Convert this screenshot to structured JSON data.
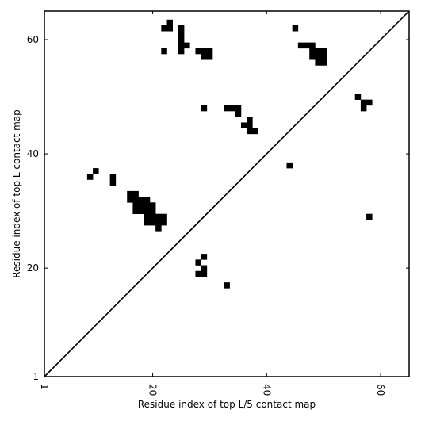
{
  "chart_data": {
    "type": "heatmap",
    "title": "",
    "xlabel": "Residue index of top L/5 contact map",
    "ylabel": "Residue index of top L contact map",
    "xlim": [
      1,
      65
    ],
    "ylim": [
      1,
      65
    ],
    "xticks": [
      1,
      20,
      40,
      60
    ],
    "yticks": [
      1,
      20,
      40,
      60
    ],
    "xtick_labels": [
      "1",
      "20",
      "40",
      "60"
    ],
    "ytick_labels": [
      "1",
      "20",
      "40",
      "60"
    ],
    "x_tick_rotation": -90,
    "diagonal_line": true,
    "grid": false,
    "cell_color": "#000000",
    "background_color": "#ffffff",
    "contacts": [
      [
        10,
        37
      ],
      [
        9,
        36
      ],
      [
        13,
        36
      ],
      [
        13,
        35
      ],
      [
        16,
        33
      ],
      [
        17,
        33
      ],
      [
        16,
        32
      ],
      [
        17,
        32
      ],
      [
        18,
        32
      ],
      [
        19,
        32
      ],
      [
        17,
        31
      ],
      [
        18,
        31
      ],
      [
        19,
        31
      ],
      [
        20,
        31
      ],
      [
        17,
        30
      ],
      [
        18,
        30
      ],
      [
        19,
        30
      ],
      [
        20,
        30
      ],
      [
        19,
        29
      ],
      [
        20,
        29
      ],
      [
        21,
        29
      ],
      [
        22,
        29
      ],
      [
        19,
        28
      ],
      [
        20,
        28
      ],
      [
        21,
        28
      ],
      [
        22,
        28
      ],
      [
        21,
        27
      ],
      [
        22,
        62
      ],
      [
        23,
        62
      ],
      [
        23,
        63
      ],
      [
        22,
        58
      ],
      [
        25,
        62
      ],
      [
        25,
        61
      ],
      [
        25,
        60
      ],
      [
        25,
        59
      ],
      [
        26,
        59
      ],
      [
        25,
        58
      ],
      [
        28,
        58
      ],
      [
        29,
        58
      ],
      [
        30,
        58
      ],
      [
        29,
        57
      ],
      [
        30,
        57
      ],
      [
        29,
        48
      ],
      [
        33,
        48
      ],
      [
        34,
        48
      ],
      [
        35,
        48
      ],
      [
        35,
        47
      ],
      [
        37,
        46
      ],
      [
        36,
        45
      ],
      [
        37,
        45
      ],
      [
        37,
        44
      ],
      [
        38,
        44
      ],
      [
        45,
        62
      ],
      [
        46,
        59
      ],
      [
        47,
        59
      ],
      [
        48,
        59
      ],
      [
        48,
        58
      ],
      [
        49,
        58
      ],
      [
        50,
        58
      ],
      [
        48,
        57
      ],
      [
        49,
        57
      ],
      [
        50,
        57
      ],
      [
        49,
        56
      ],
      [
        50,
        56
      ],
      [
        44,
        38
      ],
      [
        56,
        50
      ],
      [
        57,
        49
      ],
      [
        58,
        49
      ],
      [
        57,
        48
      ],
      [
        58,
        29
      ],
      [
        29,
        22
      ],
      [
        28,
        21
      ],
      [
        29,
        20
      ],
      [
        28,
        19
      ],
      [
        29,
        19
      ],
      [
        33,
        17
      ]
    ]
  }
}
